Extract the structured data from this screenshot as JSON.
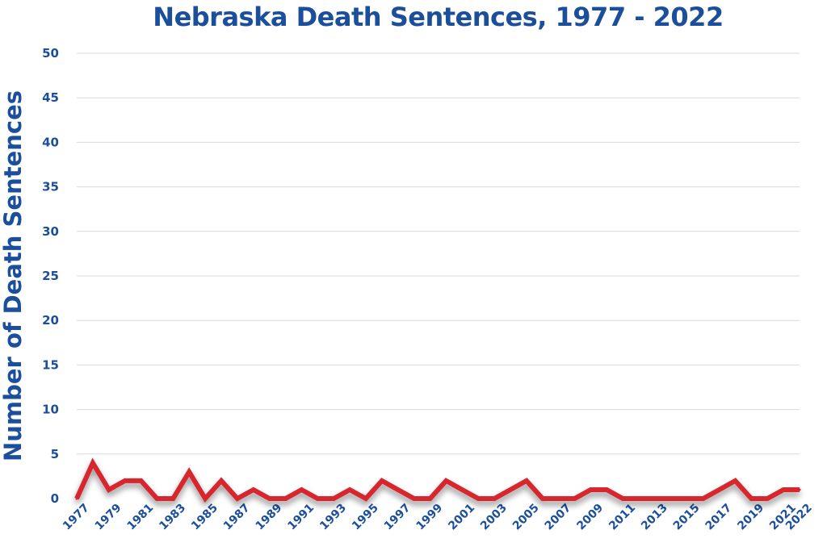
{
  "chart_data": {
    "type": "line",
    "title": "Nebraska Death Sentences, 1977 - 2022",
    "xlabel": "",
    "ylabel": "Number of Death Sentences",
    "ylim": [
      0,
      50
    ],
    "yticks": [
      0,
      5,
      10,
      15,
      20,
      25,
      30,
      35,
      40,
      45,
      50
    ],
    "xtick_labels": [
      "1977",
      "1979",
      "1981",
      "1983",
      "1985",
      "1987",
      "1989",
      "1991",
      "1993",
      "1995",
      "1997",
      "1999",
      "2001",
      "2003",
      "2005",
      "2007",
      "2009",
      "2011",
      "2013",
      "2015",
      "2017",
      "2019",
      "2021",
      "2022"
    ],
    "grid": true,
    "line_color": "#d7262f",
    "text_color": "#1b4f9c",
    "series": [
      {
        "x": [
          1977,
          1978,
          1979,
          1980,
          1981,
          1982,
          1983,
          1984,
          1985,
          1986,
          1987,
          1988,
          1989,
          1990,
          1991,
          1992,
          1993,
          1994,
          1995,
          1996,
          1997,
          1998,
          1999,
          2000,
          2001,
          2002,
          2003,
          2004,
          2005,
          2006,
          2007,
          2008,
          2009,
          2010,
          2011,
          2012,
          2013,
          2014,
          2015,
          2016,
          2017,
          2018,
          2019,
          2020,
          2021,
          2022
        ],
        "values": [
          0,
          4,
          1,
          2,
          2,
          0,
          0,
          3,
          0,
          2,
          0,
          1,
          0,
          0,
          1,
          0,
          0,
          1,
          0,
          2,
          1,
          0,
          0,
          2,
          1,
          0,
          0,
          1,
          2,
          0,
          0,
          0,
          1,
          1,
          0,
          0,
          0,
          0,
          0,
          0,
          1,
          2,
          0,
          0,
          1,
          1
        ]
      }
    ]
  }
}
